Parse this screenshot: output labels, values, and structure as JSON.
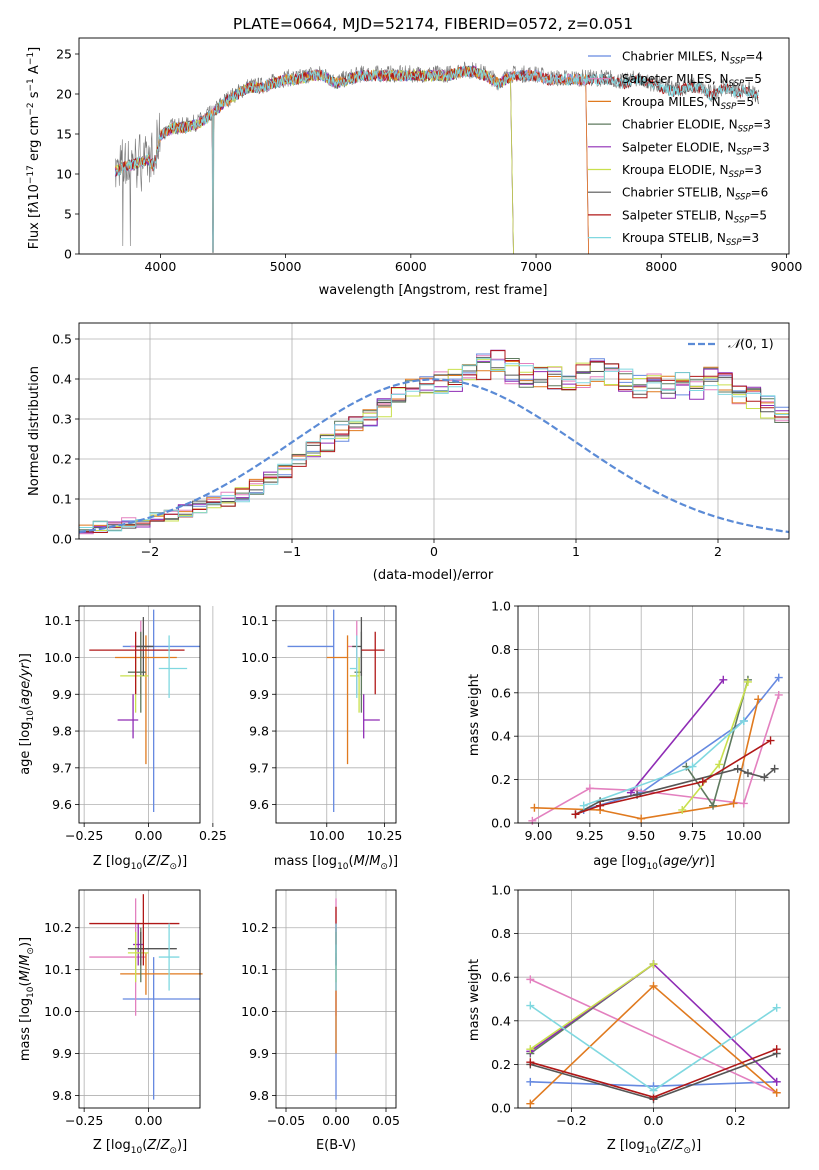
{
  "figure_title": "PLATE=0664, MJD=52174, FIBERID=0572, z=0.051",
  "palette": [
    "#6689e0",
    "#e380bf",
    "#e07a1f",
    "#5f7a5f",
    "#8f2cb5",
    "#c9e04d",
    "#555555",
    "#b01818",
    "#80d8e0"
  ],
  "panels": {
    "spectrum": {
      "xlabel": "wavelength [Angstrom, rest frame]",
      "ylabel": "Flux [f_λ10^-17 erg cm^-2 s^-1 A^-1]",
      "xticks": [
        "4000",
        "5000",
        "6000",
        "7000",
        "8000",
        "9000"
      ],
      "yticks": [
        "0",
        "5",
        "10",
        "15",
        "20",
        "25"
      ],
      "legend": [
        {
          "label": "Chabrier MILES, N_SSP=4",
          "color": "#6689e0"
        },
        {
          "label": "Salpeter MILES, N_SSP=5",
          "color": "#e380bf"
        },
        {
          "label": "Kroupa MILES, N_SSP=5",
          "color": "#e07a1f"
        },
        {
          "label": "Chabrier ELODIE, N_SSP=3",
          "color": "#5f7a5f"
        },
        {
          "label": "Salpeter ELODIE, N_SSP=3",
          "color": "#8f2cb5"
        },
        {
          "label": "Kroupa ELODIE, N_SSP=3",
          "color": "#c9e04d"
        },
        {
          "label": "Chabrier STELIB, N_SSP=6",
          "color": "#555555"
        },
        {
          "label": "Salpeter STELIB, N_SSP=5",
          "color": "#b01818"
        },
        {
          "label": "Kroupa STELIB, N_SSP=3",
          "color": "#80d8e0"
        }
      ]
    },
    "residuals": {
      "xlabel": "(data-model)/error",
      "ylabel": "Normed distribution",
      "xticks": [
        "−2",
        "−1",
        "0",
        "1",
        "2"
      ],
      "yticks": [
        "0.0",
        "0.1",
        "0.2",
        "0.3",
        "0.4",
        "0.5"
      ],
      "legend_label": "N(0,1)"
    },
    "age_z": {
      "xlabel": "Z [log10(Z/Z⊙)]",
      "ylabel": "age  [log10(age/yr)]",
      "xticks": [
        "−0.25",
        "0.00",
        "0.25"
      ],
      "yticks": [
        "9.6",
        "9.7",
        "9.8",
        "9.9",
        "10.0",
        "10.1"
      ]
    },
    "age_mass": {
      "xlabel": "mass [log10(M/M⊙)]",
      "xticks": [
        "10.00",
        "10.25"
      ],
      "yticks": [
        "9.6",
        "9.7",
        "9.8",
        "9.9",
        "10.0",
        "10.1"
      ]
    },
    "weight_age": {
      "xlabel": "age  [log10(age/yr)]",
      "ylabel": "mass weight",
      "xticks": [
        "9.00",
        "9.25",
        "9.50",
        "9.75",
        "10.00"
      ],
      "yticks": [
        "0.0",
        "0.2",
        "0.4",
        "0.6",
        "0.8",
        "1.0"
      ]
    },
    "mass_z": {
      "xlabel": "Z [log10(Z/Z⊙)]",
      "ylabel": "mass [log10(M/M⊙)]",
      "xticks": [
        "−0.25",
        "0.00"
      ],
      "yticks": [
        "9.8",
        "9.9",
        "10.0",
        "10.1",
        "10.2"
      ]
    },
    "mass_ebv": {
      "xlabel": "E(B-V)",
      "xticks": [
        "−0.05",
        "0.00",
        "0.05"
      ],
      "yticks": [
        "9.8",
        "9.9",
        "10.0",
        "10.1",
        "10.2"
      ]
    },
    "weight_z": {
      "xlabel": "Z [log10(Z/Z⊙)]",
      "ylabel": "mass weight",
      "xticks": [
        "−0.2",
        "0.0",
        "0.2"
      ],
      "yticks": [
        "0.0",
        "0.2",
        "0.4",
        "0.6",
        "0.8",
        "1.0"
      ]
    }
  },
  "chart_data": [
    {
      "type": "line",
      "title": "PLATE=0664, MJD=52174, FIBERID=0572, z=0.051",
      "xlabel": "wavelength [Angstrom, rest frame]",
      "ylabel": "Flux [f_λ10^-17 erg cm^-2 s^-1 A^-1]",
      "xlim": [
        3350,
        9020
      ],
      "ylim": [
        0,
        27
      ],
      "data_envelope": {
        "x": [
          3640,
          3700,
          3800,
          3900,
          3950,
          4000,
          4100,
          4200,
          4300,
          4400,
          4500,
          4600,
          4700,
          4800,
          4900,
          5000,
          5100,
          5200,
          5300,
          5400,
          5500,
          5600,
          5700,
          5800,
          5900,
          6000,
          6100,
          6200,
          6300,
          6400,
          6500,
          6600,
          6700,
          6800,
          6900,
          7000,
          7100,
          7200,
          7300,
          7400,
          7500,
          7600,
          7700,
          7800,
          7900,
          8000,
          8100,
          8200,
          8300,
          8400,
          8500,
          8600,
          8700,
          8780
        ],
        "y": [
          10.5,
          11,
          11.5,
          12,
          11,
          15,
          16,
          16,
          16.5,
          17.5,
          19,
          20,
          21,
          21,
          21.5,
          22,
          22,
          22.5,
          22.5,
          21.5,
          22,
          22.5,
          22.5,
          22.5,
          22.5,
          22.5,
          22.5,
          22.5,
          22.5,
          23,
          23,
          22.5,
          21.5,
          22.5,
          22.5,
          22.5,
          22,
          22,
          22,
          22,
          22,
          22,
          21.5,
          22,
          21.5,
          21,
          20.5,
          21,
          21,
          20,
          21,
          20.5,
          20.5,
          19.5
        ]
      },
      "model_end_wavelength": {
        "Chabrier MILES": 7400,
        "Salpeter MILES": 7400,
        "Kroupa MILES": 7400,
        "Chabrier ELODIE": 6800,
        "Salpeter ELODIE": 6800,
        "Kroupa ELODIE": 6800,
        "Chabrier STELIB": 8780,
        "Salpeter STELIB": 8780,
        "Kroupa STELIB": 8780
      },
      "series_names": [
        "Chabrier MILES, N_SSP=4",
        "Salpeter MILES, N_SSP=5",
        "Kroupa MILES, N_SSP=5",
        "Chabrier ELODIE, N_SSP=3",
        "Salpeter ELODIE, N_SSP=3",
        "Kroupa ELODIE, N_SSP=3",
        "Chabrier STELIB, N_SSP=6",
        "Salpeter STELIB, N_SSP=5",
        "Kroupa STELIB, N_SSP=3"
      ]
    },
    {
      "type": "area",
      "xlabel": "(data-model)/error",
      "ylabel": "Normed distribution",
      "xlim": [
        -2.5,
        2.5
      ],
      "ylim": [
        0,
        0.54
      ],
      "reference_curve": "N(0,1)",
      "bin_width": 0.1,
      "mean_hist": [
        0.02,
        0.025,
        0.03,
        0.035,
        0.04,
        0.045,
        0.055,
        0.06,
        0.07,
        0.08,
        0.09,
        0.1,
        0.11,
        0.13,
        0.15,
        0.17,
        0.2,
        0.22,
        0.24,
        0.27,
        0.29,
        0.31,
        0.33,
        0.35,
        0.37,
        0.38,
        0.39,
        0.4,
        0.41,
        0.43,
        0.44,
        0.42,
        0.41,
        0.4,
        0.4,
        0.4,
        0.41,
        0.42,
        0.41,
        0.4,
        0.38,
        0.39,
        0.38,
        0.39,
        0.38,
        0.4,
        0.39,
        0.36,
        0.35,
        0.33,
        0.31,
        0.29,
        0.26,
        0.24,
        0.21,
        0.2,
        0.18,
        0.16,
        0.14,
        0.13,
        0.11,
        0.1,
        0.09,
        0.08,
        0.07,
        0.065,
        0.06,
        0.05,
        0.04,
        0.035,
        0.03,
        0.02
      ]
    },
    {
      "type": "scatter",
      "xlabel": "Z [log10(Z/Z⊙)]",
      "ylabel": "age  [log10(age/yr)]",
      "xlim": [
        -0.27,
        0.2
      ],
      "ylim": [
        9.55,
        10.14
      ],
      "points": [
        {
          "x": 0.02,
          "y": 10.03,
          "xerr": [
            0.12,
            0.18
          ],
          "yerr": [
            0.45,
            0.1
          ]
        },
        {
          "x": -0.03,
          "y": 10.03,
          "xerr": [
            0.04,
            0.04
          ],
          "yerr": [
            0.13,
            0.07
          ]
        },
        {
          "x": -0.01,
          "y": 10.0,
          "xerr": [
            0.12,
            0.12
          ],
          "yerr": [
            0.29,
            0.06
          ]
        },
        {
          "x": -0.03,
          "y": 9.96,
          "xerr": [
            0.05,
            0.02
          ],
          "yerr": [
            0.11,
            0.11
          ]
        },
        {
          "x": -0.06,
          "y": 9.83,
          "xerr": [
            0.06,
            0.02
          ],
          "yerr": [
            0.05,
            0.07
          ]
        },
        {
          "x": -0.05,
          "y": 9.95,
          "xerr": [
            0.06,
            0.05
          ],
          "yerr": [
            0.1,
            0.05
          ]
        },
        {
          "x": -0.02,
          "y": 10.03,
          "xerr": [
            0.03,
            0.04
          ],
          "yerr": [
            0.08,
            0.08
          ]
        },
        {
          "x": -0.05,
          "y": 10.02,
          "xerr": [
            0.18,
            0.19
          ],
          "yerr": [
            0.12,
            0.05
          ]
        },
        {
          "x": 0.08,
          "y": 9.97,
          "xerr": [
            0.04,
            0.07
          ],
          "yerr": [
            0.08,
            0.09
          ]
        }
      ]
    },
    {
      "type": "scatter",
      "xlabel": "mass [log10(M/M⊙)]",
      "xlim": [
        9.78,
        10.3
      ],
      "ylim": [
        9.55,
        10.14
      ],
      "points": [
        {
          "x": 10.03,
          "y": 10.03,
          "xerr": [
            0.2,
            0.0
          ],
          "yerr": [
            0.45,
            0.1
          ]
        },
        {
          "x": 10.13,
          "y": 10.03,
          "xerr": [
            0.04,
            0.0
          ],
          "yerr": [
            0.13,
            0.07
          ]
        },
        {
          "x": 10.09,
          "y": 10.0,
          "xerr": [
            0.09,
            0.0
          ],
          "yerr": [
            0.29,
            0.06
          ]
        },
        {
          "x": 10.15,
          "y": 9.96,
          "xerr": [
            0.03,
            0.0
          ],
          "yerr": [
            0.11,
            0.11
          ]
        },
        {
          "x": 10.16,
          "y": 9.83,
          "xerr": [
            0.0,
            0.07
          ],
          "yerr": [
            0.05,
            0.07
          ]
        },
        {
          "x": 10.14,
          "y": 9.95,
          "xerr": [
            0.04,
            0.0
          ],
          "yerr": [
            0.1,
            0.05
          ]
        },
        {
          "x": 10.15,
          "y": 10.03,
          "xerr": [
            0.04,
            0.0
          ],
          "yerr": [
            0.08,
            0.08
          ]
        },
        {
          "x": 10.21,
          "y": 10.02,
          "xerr": [
            0.06,
            0.04
          ],
          "yerr": [
            0.12,
            0.05
          ]
        },
        {
          "x": 10.13,
          "y": 9.97,
          "xerr": [
            0.03,
            0.0
          ],
          "yerr": [
            0.08,
            0.09
          ]
        }
      ]
    },
    {
      "type": "line",
      "xlabel": "age  [log10(age/yr)]",
      "ylabel": "mass weight",
      "xlim": [
        8.9,
        10.22
      ],
      "ylim": [
        0,
        1
      ],
      "series": [
        {
          "x": [
            9.22,
            9.5,
            10.0,
            10.17
          ],
          "y": [
            0.06,
            0.14,
            0.47,
            0.67
          ]
        },
        {
          "x": [
            8.97,
            9.25,
            9.48,
            10.0,
            10.17
          ],
          "y": [
            0.01,
            0.16,
            0.15,
            0.09,
            0.59
          ]
        },
        {
          "x": [
            8.98,
            9.3,
            9.5,
            9.95,
            10.07
          ],
          "y": [
            0.07,
            0.06,
            0.02,
            0.09,
            0.57
          ]
        },
        {
          "x": [
            9.72,
            9.85,
            10.02
          ],
          "y": [
            0.26,
            0.08,
            0.66
          ]
        },
        {
          "x": [
            9.45,
            9.9
          ],
          "y": [
            0.14,
            0.66
          ]
        },
        {
          "x": [
            9.7,
            9.88,
            10.02
          ],
          "y": [
            0.06,
            0.27,
            0.65
          ]
        },
        {
          "x": [
            9.18,
            9.3,
            9.48,
            9.97,
            10.02,
            10.1,
            10.15
          ],
          "y": [
            0.04,
            0.1,
            0.13,
            0.25,
            0.23,
            0.21,
            0.25
          ]
        },
        {
          "x": [
            9.18,
            9.3,
            9.8,
            10.13
          ],
          "y": [
            0.04,
            0.08,
            0.19,
            0.38
          ]
        },
        {
          "x": [
            9.22,
            9.75,
            10.0
          ],
          "y": [
            0.08,
            0.26,
            0.47
          ]
        }
      ]
    },
    {
      "type": "scatter",
      "xlabel": "Z [log10(Z/Z⊙)]",
      "ylabel": "mass [log10(M/M⊙)]",
      "xlim": [
        -0.27,
        0.2
      ],
      "ylim": [
        9.77,
        10.29
      ],
      "points": [
        {
          "x": 0.02,
          "y": 10.03,
          "xerr": [
            0.12,
            0.18
          ],
          "yerr": [
            0.24,
            0.1
          ]
        },
        {
          "x": -0.05,
          "y": 10.13,
          "xerr": [
            0.18,
            0.04
          ],
          "yerr": [
            0.14,
            0.14
          ]
        },
        {
          "x": -0.01,
          "y": 10.09,
          "xerr": [
            0.1,
            0.22
          ],
          "yerr": [
            0.05,
            0.05
          ]
        },
        {
          "x": -0.03,
          "y": 10.15,
          "xerr": [
            0.04,
            0.03
          ],
          "yerr": [
            0.08,
            0.05
          ]
        },
        {
          "x": -0.04,
          "y": 10.16,
          "xerr": [
            0.02,
            0.02
          ],
          "yerr": [
            0.05,
            0.05
          ]
        },
        {
          "x": -0.05,
          "y": 10.14,
          "xerr": [
            0.03,
            0.05
          ],
          "yerr": [
            0.07,
            0.05
          ]
        },
        {
          "x": -0.03,
          "y": 10.15,
          "xerr": [
            0.05,
            0.14
          ],
          "yerr": [
            0.04,
            0.04
          ]
        },
        {
          "x": -0.02,
          "y": 10.21,
          "xerr": [
            0.21,
            0.14
          ],
          "yerr": [
            0.1,
            0.07
          ]
        },
        {
          "x": 0.08,
          "y": 10.13,
          "xerr": [
            0.04,
            0.04
          ],
          "yerr": [
            0.08,
            0.08
          ]
        }
      ]
    },
    {
      "type": "scatter",
      "xlabel": "E(B-V)",
      "xlim": [
        -0.06,
        0.06
      ],
      "ylim": [
        9.77,
        10.29
      ],
      "points": [
        {
          "x": 0.0,
          "y": 10.03,
          "yerr": [
            0.24,
            0.1
          ]
        },
        {
          "x": 0.0,
          "y": 10.13,
          "yerr": [
            0.14,
            0.14
          ]
        },
        {
          "x": 0.0,
          "y": 10.09,
          "yerr": [
            0.19,
            0.05
          ]
        },
        {
          "x": 0.0,
          "y": 10.15,
          "yerr": [
            0.08,
            0.05
          ]
        },
        {
          "x": 0.0,
          "y": 10.16,
          "yerr": [
            0.05,
            0.05
          ]
        },
        {
          "x": 0.0,
          "y": 10.14,
          "yerr": [
            0.07,
            0.05
          ]
        },
        {
          "x": 0.0,
          "y": 10.15,
          "yerr": [
            0.04,
            0.04
          ]
        },
        {
          "x": 0.0,
          "y": 10.21,
          "yerr": [
            0.05,
            0.04
          ]
        },
        {
          "x": 0.0,
          "y": 10.13,
          "yerr": [
            0.08,
            0.08
          ]
        }
      ]
    },
    {
      "type": "line",
      "xlabel": "Z [log10(Z/Z⊙)]",
      "ylabel": "mass weight",
      "xlim": [
        -0.33,
        0.33
      ],
      "ylim": [
        0,
        1
      ],
      "series": [
        {
          "x": [
            -0.3,
            0.0,
            0.3
          ],
          "y": [
            0.12,
            0.1,
            0.12
          ]
        },
        {
          "x": [
            -0.3,
            0.3
          ],
          "y": [
            0.59,
            0.07
          ]
        },
        {
          "x": [
            -0.3,
            0.0,
            0.3
          ],
          "y": [
            0.02,
            0.56,
            0.07
          ]
        },
        {
          "x": [
            -0.3,
            0.0
          ],
          "y": [
            0.25,
            0.66
          ]
        },
        {
          "x": [
            -0.3,
            0.0,
            0.3
          ],
          "y": [
            0.26,
            0.66,
            0.12
          ]
        },
        {
          "x": [
            -0.3,
            0.0
          ],
          "y": [
            0.27,
            0.66
          ]
        },
        {
          "x": [
            -0.3,
            0.0,
            0.3
          ],
          "y": [
            0.2,
            0.04,
            0.25
          ]
        },
        {
          "x": [
            -0.3,
            0.0,
            0.3
          ],
          "y": [
            0.21,
            0.05,
            0.27
          ]
        },
        {
          "x": [
            -0.3,
            0.0,
            0.3
          ],
          "y": [
            0.47,
            0.08,
            0.46
          ]
        }
      ]
    }
  ]
}
